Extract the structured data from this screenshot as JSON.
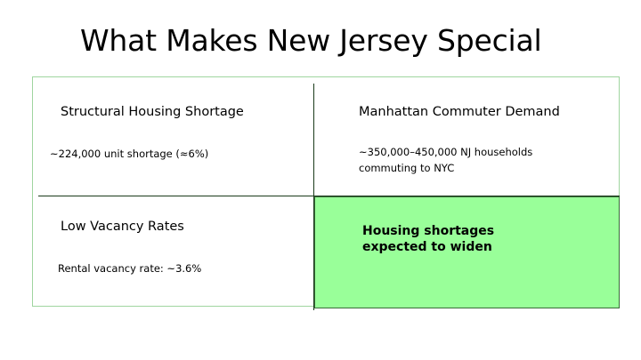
{
  "slide": {
    "title": "What Makes New Jersey Special",
    "cells": {
      "top_left": {
        "heading": "Structural Housing Shortage",
        "body": "~224,000 unit shortage (≈6%)"
      },
      "top_right": {
        "heading": "Manhattan Commuter Demand",
        "body_line1": "~350,000–450,000 NJ households",
        "body_line2": "commuting to NYC"
      },
      "bottom_left": {
        "heading": "Low Vacancy Rates",
        "body": "Rental vacancy rate: ~3.6%"
      },
      "bottom_right": {
        "emphasis_line1": "Housing shortages",
        "emphasis_line2": "expected to widen"
      }
    }
  },
  "colors": {
    "highlight_fill": "#99ff99",
    "divider": "#1a3a1a",
    "outer_border": "#9fd59f"
  }
}
